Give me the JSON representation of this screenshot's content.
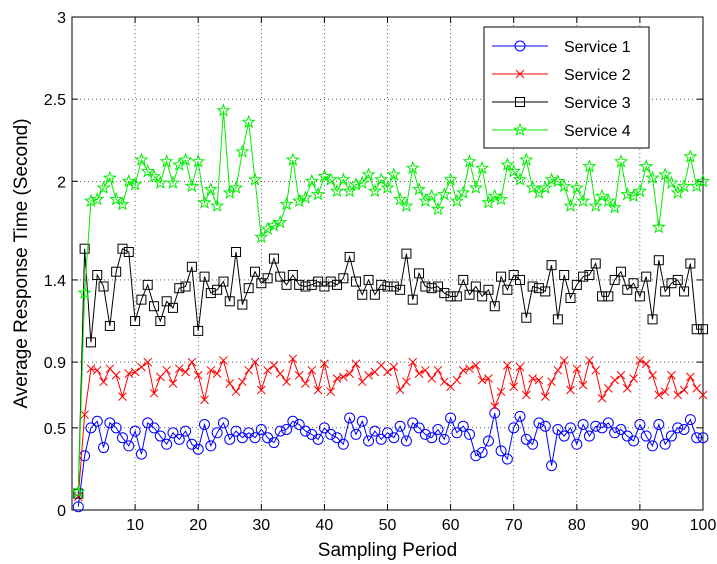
{
  "chart_data": {
    "type": "line",
    "title": "",
    "xlabel": "Sampling Period",
    "ylabel": "Average Response Time (Second)",
    "xlim": [
      0,
      100
    ],
    "ylim": [
      0,
      3
    ],
    "x_ticks": [
      10,
      20,
      30,
      40,
      50,
      60,
      70,
      80,
      90,
      100
    ],
    "y_ticks": [
      0,
      0.5,
      0.9,
      1.4,
      2,
      2.5,
      3
    ],
    "y_tick_labels": [
      "0",
      "0.5",
      "0.9",
      "1.4",
      "2",
      "2.5",
      "3"
    ],
    "grid": true,
    "legend_position": "top-right",
    "x": [
      1,
      2,
      3,
      4,
      5,
      6,
      7,
      8,
      9,
      10,
      11,
      12,
      13,
      14,
      15,
      16,
      17,
      18,
      19,
      20,
      21,
      22,
      23,
      24,
      25,
      26,
      27,
      28,
      29,
      30,
      31,
      32,
      33,
      34,
      35,
      36,
      37,
      38,
      39,
      40,
      41,
      42,
      43,
      44,
      45,
      46,
      47,
      48,
      49,
      50,
      51,
      52,
      53,
      54,
      55,
      56,
      57,
      58,
      59,
      60,
      61,
      62,
      63,
      64,
      65,
      66,
      67,
      68,
      69,
      70,
      71,
      72,
      73,
      74,
      75,
      76,
      77,
      78,
      79,
      80,
      81,
      82,
      83,
      84,
      85,
      86,
      87,
      88,
      89,
      90,
      91,
      92,
      93,
      94,
      95,
      96,
      97,
      98,
      99,
      100
    ],
    "series": [
      {
        "name": "Service 1",
        "color": "#0000ff",
        "marker": "circle",
        "values": [
          0.02,
          0.33,
          0.5,
          0.54,
          0.38,
          0.53,
          0.5,
          0.44,
          0.39,
          0.48,
          0.34,
          0.53,
          0.5,
          0.45,
          0.4,
          0.47,
          0.43,
          0.48,
          0.4,
          0.37,
          0.52,
          0.39,
          0.47,
          0.53,
          0.43,
          0.48,
          0.44,
          0.47,
          0.44,
          0.49,
          0.44,
          0.41,
          0.48,
          0.49,
          0.54,
          0.52,
          0.48,
          0.46,
          0.43,
          0.5,
          0.46,
          0.44,
          0.4,
          0.56,
          0.46,
          0.54,
          0.42,
          0.48,
          0.43,
          0.47,
          0.44,
          0.51,
          0.42,
          0.53,
          0.5,
          0.46,
          0.44,
          0.49,
          0.43,
          0.56,
          0.47,
          0.51,
          0.46,
          0.33,
          0.35,
          0.42,
          0.59,
          0.36,
          0.31,
          0.5,
          0.57,
          0.43,
          0.4,
          0.53,
          0.51,
          0.27,
          0.49,
          0.45,
          0.5,
          0.4,
          0.52,
          0.45,
          0.51,
          0.5,
          0.53,
          0.47,
          0.49,
          0.45,
          0.42,
          0.52,
          0.45,
          0.39,
          0.52,
          0.4,
          0.45,
          0.5,
          0.49,
          0.55,
          0.44,
          0.44
        ]
      },
      {
        "name": "Service 2",
        "color": "#ff0000",
        "marker": "x",
        "values": [
          0.08,
          0.58,
          0.86,
          0.85,
          0.78,
          0.86,
          0.82,
          0.69,
          0.83,
          0.84,
          0.87,
          0.9,
          0.71,
          0.81,
          0.85,
          0.77,
          0.86,
          0.84,
          0.9,
          0.82,
          0.67,
          0.85,
          0.83,
          0.91,
          0.77,
          0.72,
          0.78,
          0.85,
          0.9,
          0.73,
          0.85,
          0.88,
          0.83,
          0.78,
          0.92,
          0.82,
          0.77,
          0.85,
          0.73,
          0.89,
          0.72,
          0.8,
          0.81,
          0.83,
          0.89,
          0.78,
          0.82,
          0.84,
          0.88,
          0.84,
          0.87,
          0.73,
          0.78,
          0.9,
          0.83,
          0.85,
          0.8,
          0.85,
          0.78,
          0.75,
          0.79,
          0.85,
          0.86,
          0.88,
          0.79,
          0.8,
          0.63,
          0.72,
          0.88,
          0.75,
          0.87,
          0.7,
          0.8,
          0.79,
          0.69,
          0.78,
          0.85,
          0.91,
          0.73,
          0.86,
          0.76,
          0.91,
          0.85,
          0.68,
          0.74,
          0.79,
          0.82,
          0.74,
          0.8,
          0.91,
          0.89,
          0.82,
          0.7,
          0.72,
          0.82,
          0.7,
          0.73,
          0.81,
          0.74,
          0.7
        ]
      },
      {
        "name": "Service 3",
        "color": "#000000",
        "marker": "square",
        "values": [
          0.1,
          1.59,
          1.02,
          1.43,
          1.36,
          1.12,
          1.45,
          1.59,
          1.57,
          1.15,
          1.28,
          1.37,
          1.24,
          1.15,
          1.27,
          1.23,
          1.35,
          1.36,
          1.48,
          1.09,
          1.42,
          1.32,
          1.34,
          1.39,
          1.27,
          1.57,
          1.25,
          1.35,
          1.45,
          1.38,
          1.41,
          1.53,
          1.42,
          1.37,
          1.43,
          1.37,
          1.36,
          1.37,
          1.39,
          1.36,
          1.39,
          1.37,
          1.41,
          1.54,
          1.39,
          1.31,
          1.4,
          1.31,
          1.37,
          1.36,
          1.36,
          1.34,
          1.56,
          1.28,
          1.44,
          1.36,
          1.35,
          1.36,
          1.32,
          1.3,
          1.3,
          1.4,
          1.31,
          1.36,
          1.3,
          1.34,
          1.24,
          1.42,
          1.34,
          1.43,
          1.4,
          1.17,
          1.36,
          1.35,
          1.33,
          1.49,
          1.16,
          1.43,
          1.29,
          1.37,
          1.42,
          1.43,
          1.5,
          1.3,
          1.3,
          1.4,
          1.45,
          1.34,
          1.38,
          1.3,
          1.42,
          1.16,
          1.52,
          1.33,
          1.38,
          1.4,
          1.33,
          1.5,
          1.1,
          1.1
        ]
      },
      {
        "name": "Service 4",
        "color": "#00ee00",
        "marker": "star",
        "values": [
          0.11,
          1.32,
          1.88,
          1.89,
          1.96,
          2.02,
          1.89,
          1.86,
          2.0,
          1.98,
          2.13,
          2.06,
          2.03,
          1.99,
          2.12,
          1.99,
          2.1,
          2.13,
          1.97,
          2.12,
          1.87,
          1.95,
          1.85,
          2.43,
          1.93,
          1.96,
          2.18,
          2.36,
          2.01,
          1.66,
          1.71,
          1.73,
          1.75,
          1.86,
          2.13,
          1.88,
          1.9,
          2.0,
          1.92,
          2.03,
          2.01,
          1.94,
          2.01,
          1.94,
          1.98,
          1.99,
          2.04,
          1.94,
          2.01,
          1.96,
          2.04,
          1.89,
          1.85,
          2.08,
          1.95,
          1.88,
          1.91,
          1.83,
          1.92,
          2.01,
          1.88,
          1.93,
          2.12,
          1.96,
          2.08,
          1.87,
          1.91,
          1.89,
          2.1,
          2.06,
          2.01,
          2.13,
          1.96,
          1.93,
          1.96,
          2.01,
          2.0,
          1.97,
          1.85,
          1.96,
          1.88,
          2.09,
          1.85,
          1.91,
          1.88,
          1.84,
          2.12,
          1.92,
          1.91,
          1.94,
          2.09,
          2.02,
          1.72,
          2.04,
          1.99,
          1.93,
          1.97,
          2.15,
          1.97,
          2.0
        ]
      }
    ]
  }
}
